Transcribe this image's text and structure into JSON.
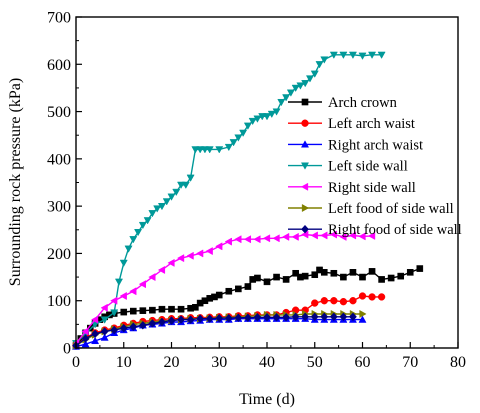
{
  "chart_data": {
    "type": "line",
    "xlabel": "Time (d)",
    "ylabel": "Surrounding rock pressure (kPa)",
    "xlim": [
      0,
      80
    ],
    "ylim": [
      0,
      700
    ],
    "xticks": [
      0,
      10,
      20,
      30,
      40,
      50,
      60,
      70,
      80
    ],
    "yticks": [
      0,
      100,
      200,
      300,
      400,
      500,
      600,
      700
    ],
    "grid": false,
    "legend_position": "center-right",
    "series": [
      {
        "name": "Arch crown",
        "color": "#000000",
        "marker": "square",
        "x": [
          0,
          1,
          2,
          3,
          4,
          5,
          6,
          7,
          8,
          10,
          12,
          14,
          16,
          18,
          20,
          22,
          24,
          25,
          26,
          27,
          28,
          29,
          30,
          32,
          34,
          36,
          37,
          38,
          40,
          42,
          44,
          46,
          47,
          48,
          50,
          51,
          52,
          54,
          56,
          58,
          60,
          62,
          64,
          66,
          68,
          70,
          72
        ],
        "y": [
          5,
          20,
          32,
          42,
          52,
          60,
          66,
          70,
          73,
          76,
          78,
          79,
          80,
          82,
          82,
          82,
          84,
          86,
          95,
          100,
          105,
          108,
          112,
          120,
          125,
          130,
          145,
          148,
          140,
          150,
          145,
          158,
          150,
          152,
          155,
          165,
          160,
          158,
          150,
          160,
          150,
          162,
          145,
          148,
          152,
          160,
          168
        ]
      },
      {
        "name": "Left arch waist",
        "color": "#ff0000",
        "marker": "circle",
        "x": [
          0,
          2,
          4,
          6,
          8,
          10,
          12,
          14,
          16,
          18,
          20,
          22,
          24,
          26,
          28,
          30,
          32,
          34,
          36,
          38,
          40,
          42,
          44,
          46,
          48,
          50,
          52,
          54,
          56,
          58,
          60,
          62,
          64
        ],
        "y": [
          5,
          22,
          32,
          38,
          42,
          48,
          52,
          56,
          58,
          60,
          62,
          62,
          64,
          64,
          65,
          66,
          66,
          68,
          68,
          70,
          70,
          70,
          75,
          80,
          80,
          95,
          100,
          100,
          98,
          100,
          110,
          108,
          108
        ]
      },
      {
        "name": "Right arch waist",
        "color": "#0000ff",
        "marker": "triangle-up",
        "x": [
          0,
          2,
          4,
          6,
          8,
          10,
          12,
          14,
          16,
          18,
          20,
          22,
          24,
          26,
          28,
          30,
          32,
          34,
          36,
          38,
          40,
          42,
          44,
          46,
          48,
          50,
          52,
          54,
          56,
          58,
          60
        ],
        "y": [
          3,
          8,
          15,
          22,
          32,
          38,
          42,
          48,
          50,
          52,
          55,
          55,
          57,
          58,
          60,
          60,
          60,
          62,
          62,
          62,
          62,
          62,
          62,
          62,
          62,
          60,
          60,
          60,
          60,
          60,
          60
        ]
      },
      {
        "name": "Left side wall",
        "color": "#009999",
        "marker": "triangle-down",
        "x": [
          0,
          2,
          4,
          6,
          8,
          9,
          10,
          11,
          12,
          13,
          14,
          15,
          16,
          17,
          18,
          19,
          20,
          21,
          22,
          23,
          24,
          25,
          26,
          27,
          28,
          30,
          32,
          33,
          34,
          35,
          36,
          37,
          38,
          39,
          40,
          41,
          42,
          43,
          44,
          45,
          46,
          47,
          48,
          49,
          50,
          51,
          52,
          54,
          56,
          58,
          60,
          62,
          64
        ],
        "y": [
          10,
          30,
          50,
          60,
          75,
          140,
          180,
          210,
          230,
          245,
          260,
          270,
          285,
          295,
          300,
          310,
          320,
          330,
          345,
          345,
          360,
          420,
          420,
          420,
          420,
          420,
          425,
          435,
          445,
          455,
          470,
          480,
          485,
          490,
          490,
          495,
          500,
          520,
          530,
          540,
          550,
          555,
          560,
          570,
          580,
          600,
          610,
          620,
          620,
          620,
          618,
          620,
          620
        ]
      },
      {
        "name": "Right side wall",
        "color": "#ff00ff",
        "marker": "triangle-left",
        "x": [
          0,
          2,
          4,
          6,
          8,
          10,
          12,
          14,
          16,
          18,
          20,
          22,
          24,
          26,
          28,
          30,
          32,
          34,
          36,
          38,
          40,
          42,
          44,
          46,
          48,
          50,
          52,
          54,
          56,
          58,
          60,
          62
        ],
        "y": [
          10,
          35,
          60,
          85,
          100,
          110,
          120,
          135,
          150,
          165,
          180,
          190,
          195,
          200,
          205,
          215,
          225,
          230,
          230,
          230,
          232,
          232,
          235,
          235,
          240,
          238,
          238,
          240,
          235,
          238,
          236,
          237
        ]
      },
      {
        "name": "Left food of side wall",
        "color": "#808000",
        "marker": "triangle-right",
        "x": [
          0,
          2,
          4,
          6,
          8,
          10,
          12,
          14,
          16,
          18,
          20,
          22,
          24,
          26,
          28,
          30,
          32,
          34,
          36,
          38,
          40,
          42,
          44,
          46,
          48,
          50,
          52,
          54,
          56,
          58,
          60
        ],
        "y": [
          5,
          18,
          28,
          35,
          40,
          45,
          50,
          52,
          55,
          57,
          58,
          60,
          62,
          62,
          63,
          64,
          65,
          66,
          67,
          68,
          70,
          70,
          70,
          70,
          72,
          72,
          72,
          72,
          72,
          72,
          72
        ]
      },
      {
        "name": "Right food of side wall",
        "color": "#000080",
        "marker": "diamond",
        "x": [
          0,
          2,
          4,
          6,
          8,
          10,
          12,
          14,
          16,
          18,
          20,
          22,
          24,
          26,
          28,
          30,
          32,
          34,
          36,
          38,
          40,
          42,
          44,
          46,
          48,
          50,
          52,
          54,
          56,
          58
        ],
        "y": [
          5,
          20,
          30,
          35,
          38,
          42,
          45,
          48,
          52,
          55,
          58,
          60,
          60,
          62,
          62,
          63,
          63,
          64,
          64,
          65,
          65,
          65,
          65,
          66,
          66,
          66,
          66,
          66,
          66,
          66
        ]
      }
    ]
  }
}
